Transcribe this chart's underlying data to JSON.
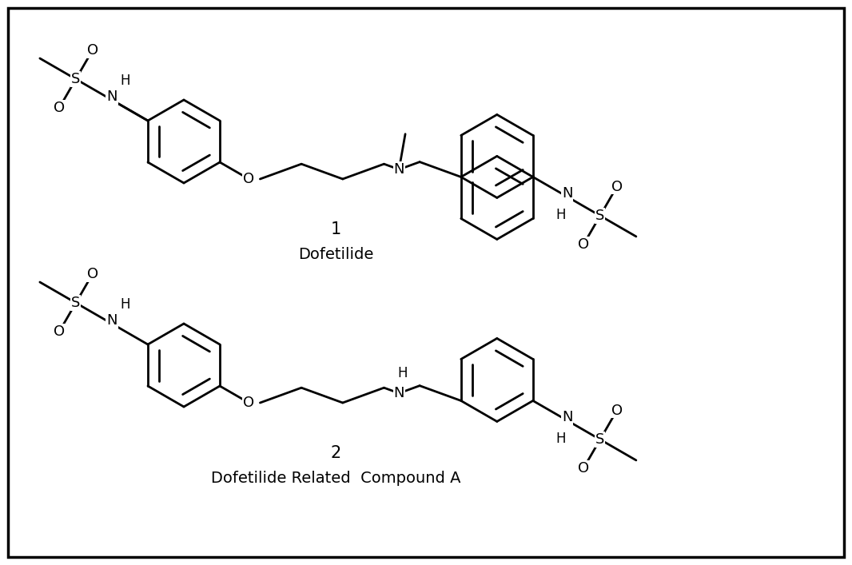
{
  "background_color": "#ffffff",
  "border_color": "#000000",
  "line_width": 2.0,
  "font_size_label": 15,
  "font_size_atom": 13,
  "title1": "1",
  "title2": "2",
  "subtitle1": "Dofetilide",
  "subtitle2": "Dofetilide Related  Compound A"
}
